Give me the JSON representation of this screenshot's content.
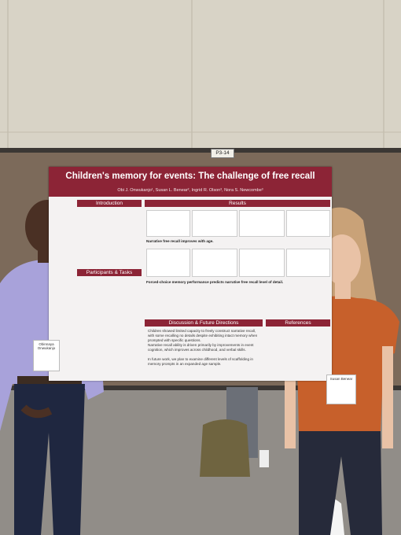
{
  "sign": "P3-14",
  "poster": {
    "title": "Children's memory for events: The challenge of free recall",
    "authors": "Obi J. Onwukanjo¹, Susan L. Benear², Ingrid R. Olson³, Nora S. Newcombe³",
    "sections": [
      "Introduction",
      "Results",
      "Participants & Tasks",
      "Discussion & Future Directions",
      "References"
    ],
    "findings": [
      "Narrative free recall improves with age.",
      "Forced-choice memory performance predicts narrative free recall level of detail."
    ],
    "discussion": [
      "Children showed limited capacity to freely construct narrative recall, with some recalling no details despite exhibiting intact memory when prompted with specific questions.",
      "Narrative recall ability is driven primarily by improvements in event cognition, which improves across childhood, and verbal skills.",
      "In future work, we plan to examine different levels of scaffolding in memory prompts in an expanded age sample."
    ]
  },
  "badges": [
    "Obinnaya Onwukanjo",
    "Susan Benear"
  ]
}
